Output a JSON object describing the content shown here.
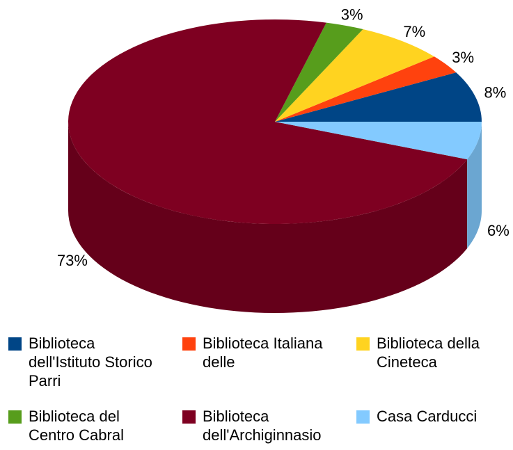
{
  "chart_data": {
    "type": "pie3d",
    "categories": [
      "Biblioteca dell'Istituto Storico Parri",
      "Biblioteca Italiana delle",
      "Biblioteca della Cineteca",
      "Biblioteca del Centro Cabral",
      "Biblioteca dell'Archiginnasio",
      "Casa Carducci"
    ],
    "values": [
      8,
      3,
      7,
      3,
      73,
      6
    ],
    "value_labels": [
      "8%",
      "3%",
      "7%",
      "3%",
      "73%",
      "6%"
    ],
    "colors": [
      "#004586",
      "#ff420e",
      "#ffd320",
      "#579d1c",
      "#7e0021",
      "#83caff"
    ],
    "legend": "bottom"
  }
}
